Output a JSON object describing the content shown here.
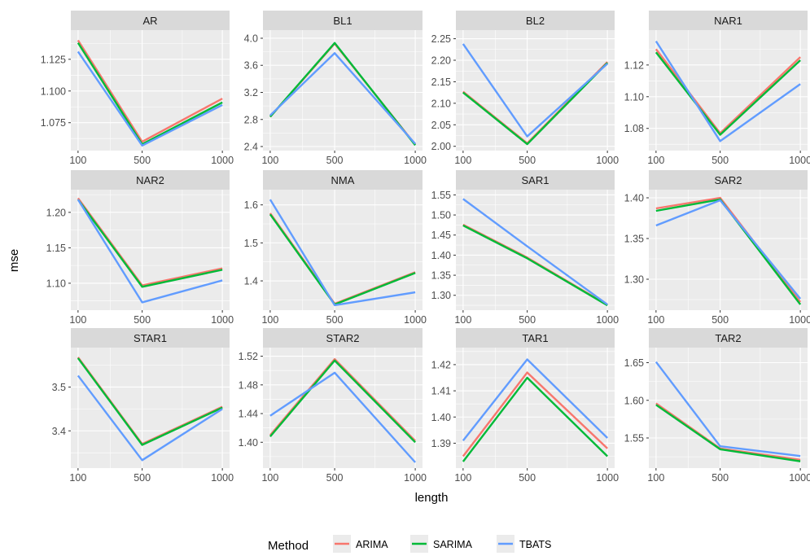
{
  "chart_data": {
    "type": "line",
    "xlabel": "length",
    "ylabel": "mse",
    "x": [
      100,
      500,
      1000
    ],
    "x_tick_labels": [
      "100",
      "500",
      "1000"
    ],
    "legend": {
      "title": "Method",
      "placement": "bottom",
      "entries": [
        "ARIMA",
        "SARIMA",
        "TBATS"
      ]
    },
    "series_colors": {
      "ARIMA": "#F8766D",
      "SARIMA": "#00BA38",
      "TBATS": "#619CFF"
    },
    "panel_background": "#EBEBEB",
    "strip_background": "#D9D9D9",
    "grid": true,
    "panels": [
      {
        "title": "AR",
        "ylim": [
          1.053,
          1.148
        ],
        "yticks": [
          1.075,
          1.1,
          1.125
        ],
        "ytick_labels": [
          "1.075",
          "1.100",
          "1.125"
        ],
        "series": [
          {
            "name": "ARIMA",
            "values": [
              1.14,
              1.06,
              1.094
            ]
          },
          {
            "name": "SARIMA",
            "values": [
              1.138,
              1.058,
              1.091
            ]
          },
          {
            "name": "TBATS",
            "values": [
              1.131,
              1.057,
              1.089
            ]
          }
        ]
      },
      {
        "title": "BL1",
        "ylim": [
          2.34,
          4.12
        ],
        "yticks": [
          2.4,
          2.8,
          3.2,
          3.6,
          4.0
        ],
        "ytick_labels": [
          "2.4",
          "2.8",
          "3.2",
          "3.6",
          "4.0"
        ],
        "series": [
          {
            "name": "ARIMA",
            "values": [
              2.84,
              3.92,
              2.43
            ]
          },
          {
            "name": "SARIMA",
            "values": [
              2.84,
              3.93,
              2.42
            ]
          },
          {
            "name": "TBATS",
            "values": [
              2.86,
              3.78,
              2.44
            ]
          }
        ]
      },
      {
        "title": "BL2",
        "ylim": [
          1.99,
          2.27
        ],
        "yticks": [
          2.0,
          2.05,
          2.1,
          2.15,
          2.2,
          2.25
        ],
        "ytick_labels": [
          "2.00",
          "2.05",
          "2.10",
          "2.15",
          "2.20",
          "2.25"
        ],
        "series": [
          {
            "name": "ARIMA",
            "values": [
              2.127,
              2.007,
              2.196
            ]
          },
          {
            "name": "SARIMA",
            "values": [
              2.125,
              2.005,
              2.194
            ]
          },
          {
            "name": "TBATS",
            "values": [
              2.238,
              2.023,
              2.192
            ]
          }
        ]
      },
      {
        "title": "NAR1",
        "ylim": [
          1.066,
          1.142
        ],
        "yticks": [
          1.08,
          1.1,
          1.12
        ],
        "ytick_labels": [
          "1.08",
          "1.10",
          "1.12"
        ],
        "series": [
          {
            "name": "ARIMA",
            "values": [
              1.13,
              1.077,
              1.125
            ]
          },
          {
            "name": "SARIMA",
            "values": [
              1.128,
              1.076,
              1.123
            ]
          },
          {
            "name": "TBATS",
            "values": [
              1.135,
              1.072,
              1.108
            ]
          }
        ]
      },
      {
        "title": "NAR2",
        "ylim": [
          1.062,
          1.232
        ],
        "yticks": [
          1.1,
          1.15,
          1.2
        ],
        "ytick_labels": [
          "1.10",
          "1.15",
          "1.20"
        ],
        "series": [
          {
            "name": "ARIMA",
            "values": [
              1.22,
              1.097,
              1.121
            ]
          },
          {
            "name": "SARIMA",
            "values": [
              1.218,
              1.095,
              1.119
            ]
          },
          {
            "name": "TBATS",
            "values": [
              1.218,
              1.073,
              1.104
            ]
          }
        ]
      },
      {
        "title": "NMA",
        "ylim": [
          1.323,
          1.64
        ],
        "yticks": [
          1.4,
          1.5,
          1.6
        ],
        "ytick_labels": [
          "1.4",
          "1.5",
          "1.6"
        ],
        "series": [
          {
            "name": "ARIMA",
            "values": [
              1.578,
              1.34,
              1.423
            ]
          },
          {
            "name": "SARIMA",
            "values": [
              1.575,
              1.338,
              1.421
            ]
          },
          {
            "name": "TBATS",
            "values": [
              1.614,
              1.336,
              1.37
            ]
          }
        ]
      },
      {
        "title": "SAR1",
        "ylim": [
          1.263,
          1.563
        ],
        "yticks": [
          1.3,
          1.35,
          1.4,
          1.45,
          1.5,
          1.55
        ],
        "ytick_labels": [
          "1.30",
          "1.35",
          "1.40",
          "1.45",
          "1.50",
          "1.55"
        ],
        "series": [
          {
            "name": "ARIMA",
            "values": [
              1.476,
              1.394,
              1.276
            ]
          },
          {
            "name": "SARIMA",
            "values": [
              1.474,
              1.392,
              1.275
            ]
          },
          {
            "name": "TBATS",
            "values": [
              1.54,
              1.422,
              1.277
            ]
          }
        ]
      },
      {
        "title": "SAR2",
        "ylim": [
          1.262,
          1.41
        ],
        "yticks": [
          1.3,
          1.35,
          1.4
        ],
        "ytick_labels": [
          "1.30",
          "1.35",
          "1.40"
        ],
        "series": [
          {
            "name": "ARIMA",
            "values": [
              1.387,
              1.4,
              1.272
            ]
          },
          {
            "name": "SARIMA",
            "values": [
              1.384,
              1.398,
              1.269
            ]
          },
          {
            "name": "TBATS",
            "values": [
              1.366,
              1.397,
              1.276
            ]
          }
        ]
      },
      {
        "title": "STAR1",
        "ylim": [
          3.315,
          3.59
        ],
        "yticks": [
          3.4,
          3.5
        ],
        "ytick_labels": [
          "3.4",
          "3.5"
        ],
        "series": [
          {
            "name": "ARIMA",
            "values": [
              3.568,
              3.37,
              3.455
            ]
          },
          {
            "name": "SARIMA",
            "values": [
              3.566,
              3.368,
              3.453
            ]
          },
          {
            "name": "TBATS",
            "values": [
              3.526,
              3.333,
              3.45
            ]
          }
        ]
      },
      {
        "title": "STAR2",
        "ylim": [
          1.364,
          1.532
        ],
        "yticks": [
          1.4,
          1.44,
          1.48,
          1.52
        ],
        "ytick_labels": [
          "1.40",
          "1.44",
          "1.48",
          "1.52"
        ],
        "series": [
          {
            "name": "ARIMA",
            "values": [
              1.41,
              1.516,
              1.402
            ]
          },
          {
            "name": "SARIMA",
            "values": [
              1.408,
              1.514,
              1.4
            ]
          },
          {
            "name": "TBATS",
            "values": [
              1.437,
              1.497,
              1.372
            ]
          }
        ]
      },
      {
        "title": "TAR1",
        "ylim": [
          1.3805,
          1.4265
        ],
        "yticks": [
          1.39,
          1.4,
          1.41,
          1.42
        ],
        "ytick_labels": [
          "1.39",
          "1.40",
          "1.41",
          "1.42"
        ],
        "series": [
          {
            "name": "ARIMA",
            "values": [
              1.385,
              1.417,
              1.388
            ]
          },
          {
            "name": "SARIMA",
            "values": [
              1.383,
              1.415,
              1.385
            ]
          },
          {
            "name": "TBATS",
            "values": [
              1.391,
              1.422,
              1.392
            ]
          }
        ]
      },
      {
        "title": "TAR2",
        "ylim": [
          1.51,
          1.67
        ],
        "yticks": [
          1.55,
          1.6,
          1.65
        ],
        "ytick_labels": [
          "1.55",
          "1.60",
          "1.65"
        ],
        "series": [
          {
            "name": "ARIMA",
            "values": [
              1.596,
              1.536,
              1.521
            ]
          },
          {
            "name": "SARIMA",
            "values": [
              1.594,
              1.535,
              1.519
            ]
          },
          {
            "name": "TBATS",
            "values": [
              1.651,
              1.539,
              1.526
            ]
          }
        ]
      }
    ]
  }
}
